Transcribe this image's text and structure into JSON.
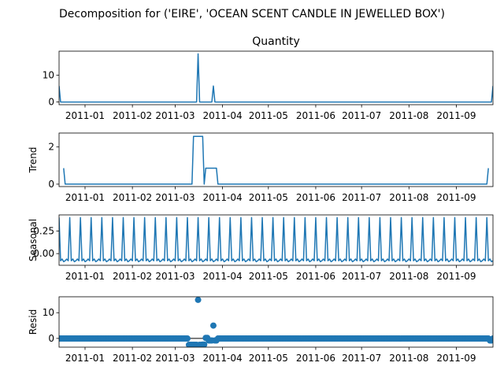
{
  "figure": {
    "suptitle": "Decomposition for ('EIRE', 'OCEAN SCENT CANDLE IN JEWELLED BOX')"
  },
  "chart_data": [
    {
      "type": "line",
      "title": "Quantity",
      "ylabel": "",
      "color": "#1f77b4",
      "xlim": [
        "2010-12-15",
        "2011-09-25"
      ],
      "ylim": [
        -1,
        19
      ],
      "yticks": [
        0,
        10
      ],
      "xticks": [
        "2011-01",
        "2011-02",
        "2011-03",
        "2011-04",
        "2011-05",
        "2011-06",
        "2011-07",
        "2011-08",
        "2011-09"
      ],
      "points": [
        {
          "x": "2010-12-15",
          "y": 6
        },
        {
          "x": "2010-12-16",
          "y": 0
        },
        {
          "x": "2011-03-15",
          "y": 0
        },
        {
          "x": "2011-03-16",
          "y": 18
        },
        {
          "x": "2011-03-17",
          "y": 0
        },
        {
          "x": "2011-03-25",
          "y": 0
        },
        {
          "x": "2011-03-26",
          "y": 6
        },
        {
          "x": "2011-03-27",
          "y": 0
        },
        {
          "x": "2011-09-24",
          "y": 0
        },
        {
          "x": "2011-09-25",
          "y": 6
        }
      ]
    },
    {
      "type": "line",
      "title": "",
      "ylabel": "Trend",
      "color": "#1f77b4",
      "xlim": [
        "2010-12-15",
        "2011-09-25"
      ],
      "ylim": [
        -0.13,
        2.75
      ],
      "yticks": [
        0,
        2
      ],
      "xticks": [
        "2011-01",
        "2011-02",
        "2011-03",
        "2011-04",
        "2011-05",
        "2011-06",
        "2011-07",
        "2011-08",
        "2011-09"
      ],
      "points": [
        {
          "x": "2010-12-18",
          "y": 0.86
        },
        {
          "x": "2010-12-19",
          "y": 0
        },
        {
          "x": "2011-03-12",
          "y": 0
        },
        {
          "x": "2011-03-13",
          "y": 2.57
        },
        {
          "x": "2011-03-19",
          "y": 2.57
        },
        {
          "x": "2011-03-20",
          "y": 0
        },
        {
          "x": "2011-03-21",
          "y": 0.86
        },
        {
          "x": "2011-03-28",
          "y": 0.86
        },
        {
          "x": "2011-03-29",
          "y": 0
        },
        {
          "x": "2011-09-21",
          "y": 0
        },
        {
          "x": "2011-09-22",
          "y": 0.86
        }
      ]
    },
    {
      "type": "line",
      "title": "",
      "ylabel": "Seasonal",
      "color": "#1f77b4",
      "xlim": [
        "2010-12-15",
        "2011-09-25"
      ],
      "ylim": [
        -0.13,
        0.43
      ],
      "yticks": [
        0.0,
        0.25
      ],
      "xticks": [
        "2011-01",
        "2011-02",
        "2011-03",
        "2011-04",
        "2011-05",
        "2011-06",
        "2011-07",
        "2011-08",
        "2011-09"
      ],
      "period_days": 7,
      "pattern": [
        0.4,
        -0.08,
        -0.06,
        -0.09,
        -0.08,
        -0.06,
        -0.08
      ],
      "start": "2010-12-15"
    },
    {
      "type": "scatter",
      "title": "",
      "ylabel": "Resid",
      "color": "#1f77b4",
      "baseline": 0,
      "xlim": [
        "2010-12-15",
        "2011-09-25"
      ],
      "ylim": [
        -3.4,
        16.2
      ],
      "yticks": [
        0,
        10
      ],
      "xticks": [
        "2011-01",
        "2011-02",
        "2011-03",
        "2011-04",
        "2011-05",
        "2011-06",
        "2011-07",
        "2011-08",
        "2011-09"
      ],
      "default_y": -0.05,
      "outliers": [
        {
          "x": "2011-03-10",
          "y": -2.5
        },
        {
          "x": "2011-03-11",
          "y": -2.5
        },
        {
          "x": "2011-03-12",
          "y": -2.5
        },
        {
          "x": "2011-03-13",
          "y": -2.5
        },
        {
          "x": "2011-03-14",
          "y": -2.5
        },
        {
          "x": "2011-03-15",
          "y": -2.5
        },
        {
          "x": "2011-03-16",
          "y": 15
        },
        {
          "x": "2011-03-17",
          "y": -2.5
        },
        {
          "x": "2011-03-18",
          "y": -2.5
        },
        {
          "x": "2011-03-19",
          "y": -2.4
        },
        {
          "x": "2011-03-20",
          "y": -2.4
        },
        {
          "x": "2011-03-21",
          "y": 0.2
        },
        {
          "x": "2011-03-22",
          "y": 0.2
        },
        {
          "x": "2011-03-23",
          "y": -0.8
        },
        {
          "x": "2011-03-24",
          "y": -0.8
        },
        {
          "x": "2011-03-25",
          "y": -0.8
        },
        {
          "x": "2011-03-26",
          "y": 5
        },
        {
          "x": "2011-03-27",
          "y": -0.8
        },
        {
          "x": "2011-03-28",
          "y": -0.8
        },
        {
          "x": "2011-09-23",
          "y": -0.8
        },
        {
          "x": "2011-09-24",
          "y": -0.8
        }
      ]
    }
  ]
}
